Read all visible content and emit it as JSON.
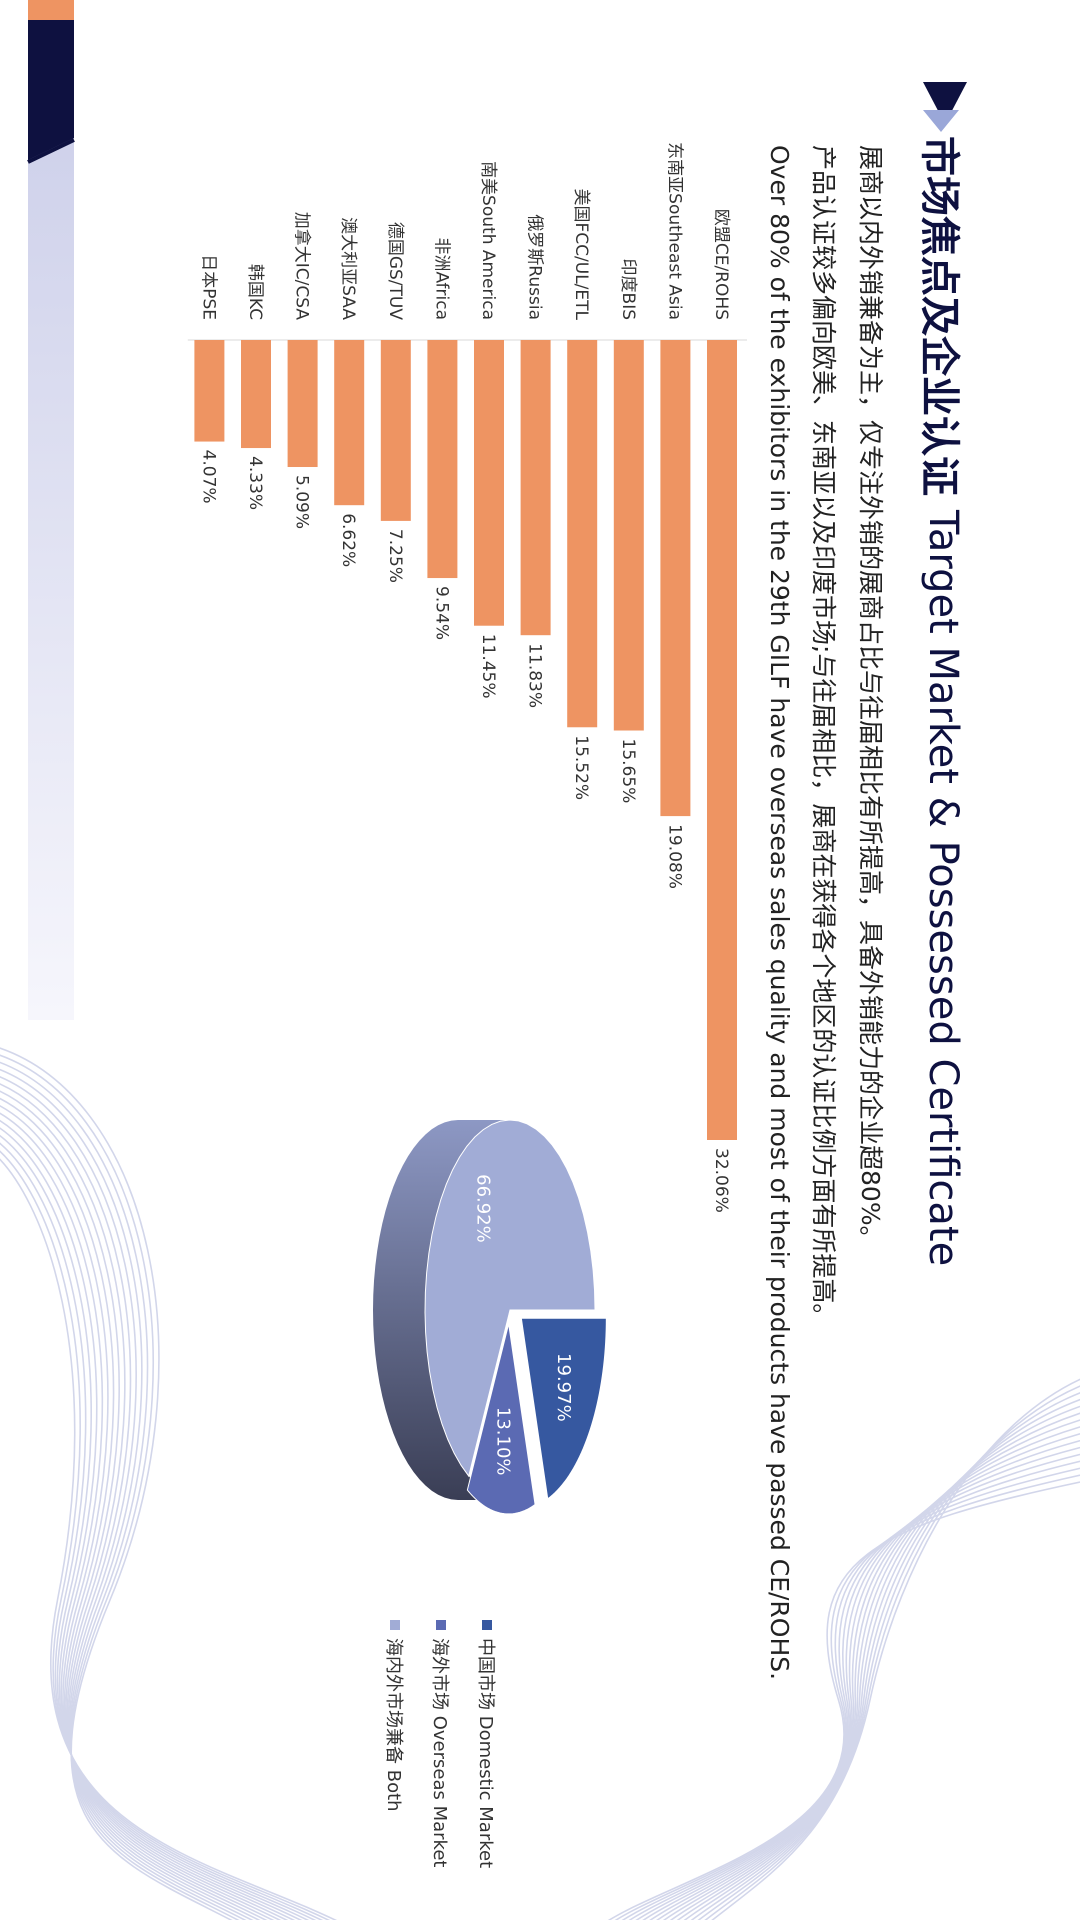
{
  "header": {
    "title_cn": "市场焦点及企业认证",
    "title_en": "Target Market & Possessed Certificate"
  },
  "description": {
    "line1": "展商以内外销兼备为主，仅专注外销的展商占比与往届相比有所提高，具备外销能力的企业超80%。",
    "line2": "产品认证较多偏向欧美、东南亚以及印度市场;与往届相比，展商在获得各个地区的认证比例方面有所提高。",
    "line3": "Over 80% of the exhibitors in the 29th GILF have overseas sales quality and most of their products have passed CE/ROHS."
  },
  "colors": {
    "accent_navy": "#0e1140",
    "bar_orange": "#ee9462",
    "top_orange": "#ee9462"
  },
  "chart_data": [
    {
      "type": "bar",
      "orientation": "horizontal",
      "categories": [
        "欧盟CE/ROHS",
        "东南亚Southeast Asia",
        "印度BIS",
        "美国FCC/UL/ETL",
        "俄罗斯Russia",
        "南美South America",
        "非洲Africa",
        "德国GS/TUV",
        "澳大利亚SAA",
        "加拿大IC/CSA",
        "韩国KC",
        "日本PSE"
      ],
      "values": [
        32.06,
        19.08,
        15.65,
        15.52,
        11.83,
        11.45,
        9.54,
        7.25,
        6.62,
        5.09,
        4.33,
        4.07
      ],
      "value_labels": [
        "32.06%",
        "19.08%",
        "15.65%",
        "15.52%",
        "11.83%",
        "11.45%",
        "9.54%",
        "7.25%",
        "6.62%",
        "5.09%",
        "4.33%",
        "4.07%"
      ],
      "xlim": [
        0,
        35
      ],
      "color": "#ee9462"
    },
    {
      "type": "pie",
      "style": "3d",
      "slices": [
        {
          "name": "中国市场 Domestic Market",
          "value": 19.97,
          "label": "19.97%",
          "color": "#3658a0"
        },
        {
          "name": "海外市场 Overseas Market",
          "value": 13.1,
          "label": "13.10%",
          "color": "#5b6ab3"
        },
        {
          "name": "海内外市场兼备 Both",
          "value": 66.92,
          "label": "66.92%",
          "color": "#a1acd6"
        }
      ],
      "legend": [
        "中国市场 Domestic Market",
        "海外市场 Overseas Market",
        "海内外市场兼备 Both"
      ],
      "legend_position": "right"
    }
  ]
}
